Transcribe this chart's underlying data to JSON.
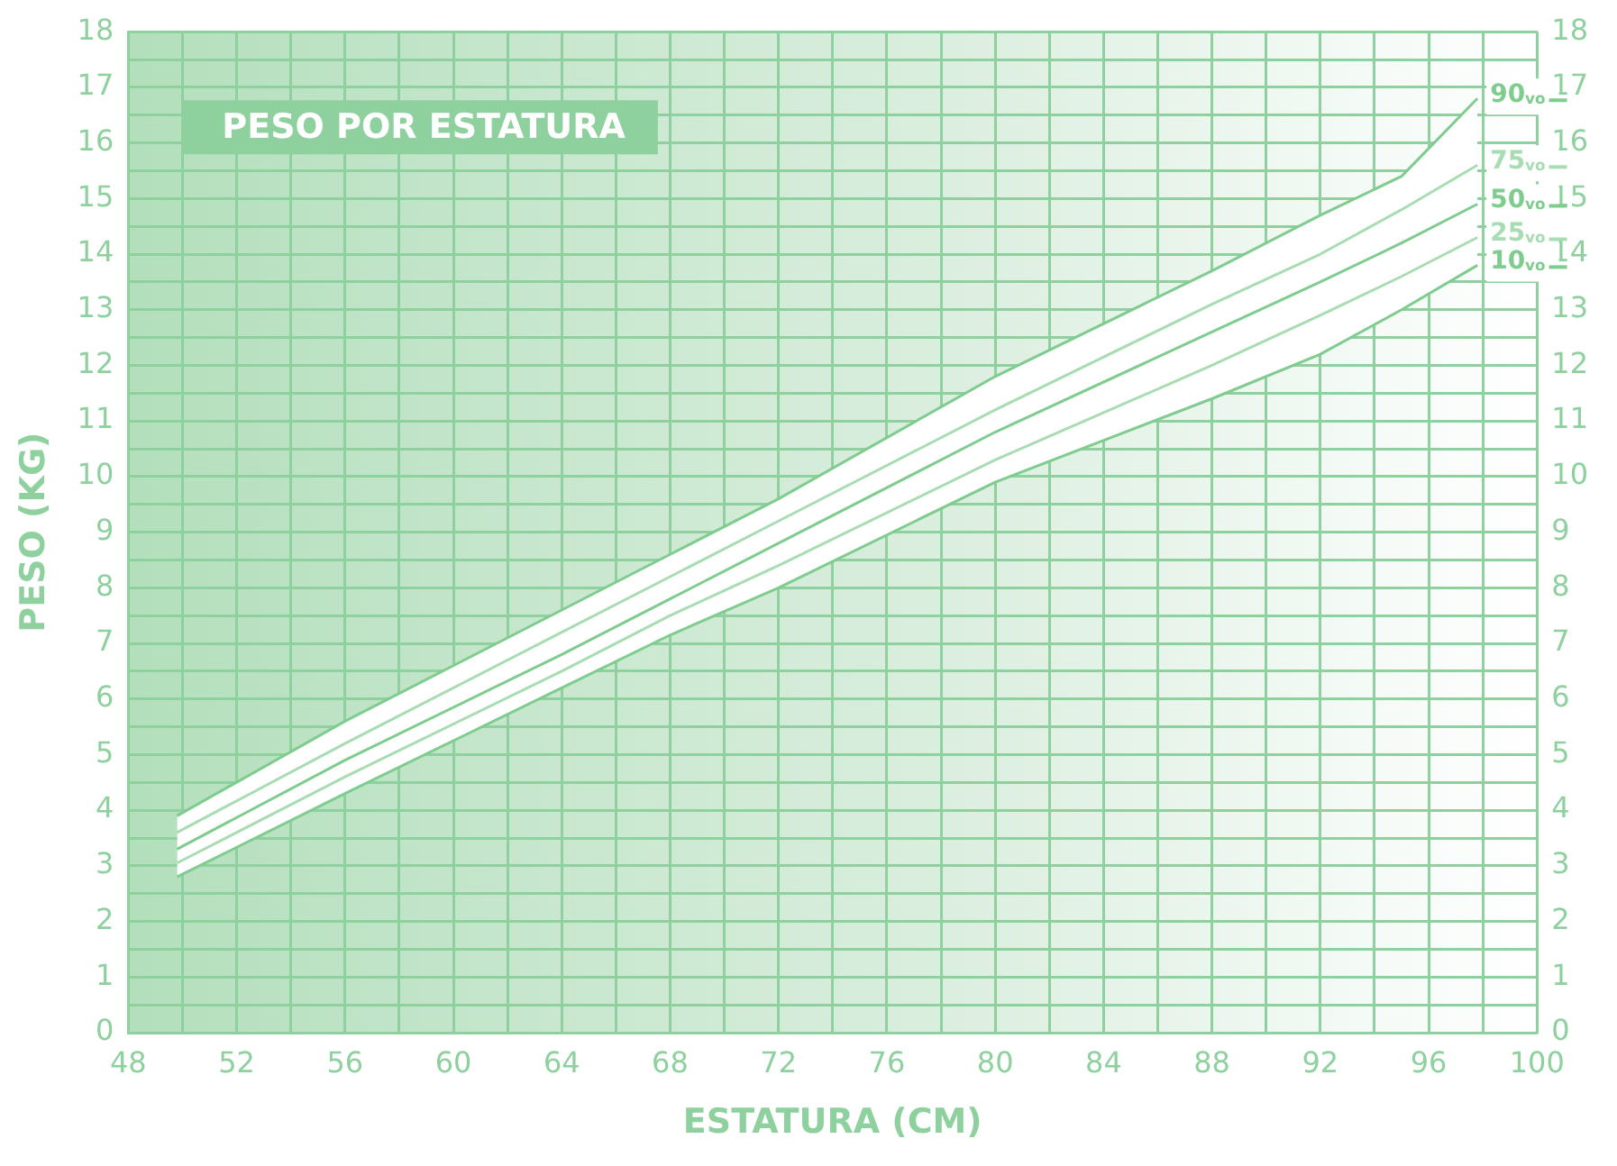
{
  "chart_data": {
    "type": "line",
    "title": "PESO POR ESTATURA",
    "xlabel": "ESTATURA (CM)",
    "ylabel": "PESO (KG)",
    "x": [
      49.8,
      56,
      64,
      68,
      72,
      80,
      88,
      92,
      95,
      97.8
    ],
    "series": [
      {
        "name": "90$_{vo}$",
        "color": "#7fcc8f",
        "values": [
          3.9,
          5.6,
          7.6,
          8.6,
          9.6,
          11.8,
          13.7,
          14.7,
          15.4,
          16.8
        ]
      },
      {
        "name": "75$_{vo}$",
        "color": "#a8dcb2",
        "values": [
          3.6,
          5.2,
          7.2,
          8.2,
          9.2,
          11.2,
          13.1,
          14.0,
          14.8,
          15.6
        ]
      },
      {
        "name": "50$_{vo}$",
        "color": "#7fcc8f",
        "values": [
          3.3,
          4.9,
          6.8,
          7.8,
          8.8,
          10.8,
          12.6,
          13.5,
          14.2,
          14.9
        ],
        "lower": [
          2.8,
          4.3,
          6.2,
          7.15,
          8.0,
          9.9,
          11.4,
          12.2,
          13.0,
          13.8
        ],
        "upper": [
          3.9,
          5.6,
          7.6,
          8.6,
          9.6,
          11.8,
          13.7,
          14.7,
          15.4,
          16.8
        ]
      },
      {
        "name": "25$_{vo}$",
        "color": "#a8dcb2",
        "values": [
          3.05,
          4.6,
          6.5,
          7.5,
          8.4,
          10.3,
          12.0,
          12.9,
          13.6,
          14.3
        ]
      },
      {
        "name": "10$_{vo}$",
        "color": "#7fcc8f",
        "values": [
          2.8,
          4.3,
          6.2,
          7.15,
          8.0,
          9.9,
          11.4,
          12.2,
          13.0,
          13.8
        ]
      }
    ],
    "xlim": [
      48,
      100
    ],
    "xticks": [
      48,
      {
        "value": 50,
        "label": null
      },
      52,
      {
        "value": 54,
        "label": null
      },
      56,
      {
        "value": 58,
        "label": null
      },
      60,
      {
        "value": 62,
        "label": null
      },
      64,
      {
        "value": 66,
        "label": null
      },
      68,
      {
        "value": 70,
        "label": null
      },
      72,
      {
        "value": 74,
        "label": null
      },
      76,
      {
        "value": 78,
        "label": null
      },
      80,
      {
        "value": 82,
        "label": null
      },
      84,
      {
        "value": 86,
        "label": null
      },
      88,
      {
        "value": 90,
        "label": null
      },
      92,
      {
        "value": 94,
        "label": null
      },
      96,
      {
        "value": 98,
        "label": null
      },
      100
    ],
    "ylim": [
      0,
      18
    ],
    "yticks": [
      0,
      {
        "value": 0.5,
        "label": null
      },
      1,
      {
        "value": 1.5,
        "label": null
      },
      2,
      {
        "value": 2.5,
        "label": null
      },
      3,
      {
        "value": 3.5,
        "label": null
      },
      4,
      {
        "value": 4.5,
        "label": null
      },
      5,
      {
        "value": 5.5,
        "label": null
      },
      6,
      {
        "value": 6.5,
        "label": null
      },
      7,
      {
        "value": 7.5,
        "label": null
      },
      8,
      {
        "value": 8.5,
        "label": null
      },
      9,
      {
        "value": 9.5,
        "label": null
      },
      10,
      {
        "value": 10.5,
        "label": null
      },
      11,
      {
        "value": 11.5,
        "label": null
      },
      12,
      {
        "value": 12.5,
        "label": null
      },
      13,
      {
        "value": 13.5,
        "label": null
      },
      14,
      {
        "value": 14.5,
        "label": null
      },
      15,
      {
        "value": 15.5,
        "label": null
      },
      16,
      {
        "value": 16.5,
        "label": null
      },
      17,
      {
        "value": 17.5,
        "label": null
      },
      18
    ],
    "y2lim": [
      0,
      18
    ],
    "y2ticks": [
      0,
      1,
      2,
      3,
      4,
      5,
      6,
      7,
      8,
      9,
      10,
      11,
      12,
      13,
      14,
      15,
      16,
      17,
      18
    ],
    "grid": true,
    "legend": "right",
    "marker": "none",
    "line_style": "solid"
  }
}
